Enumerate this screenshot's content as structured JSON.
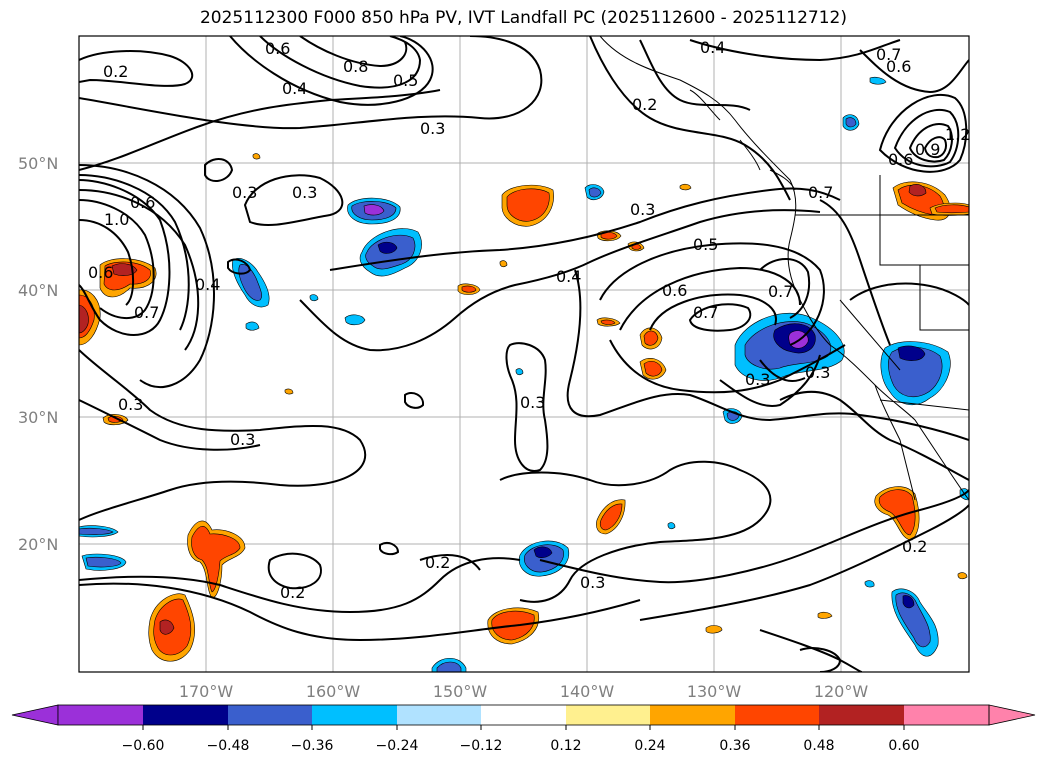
{
  "title": "2025112300 F000 850 hPa PV, IVT Landfall PC (2025112600 - 2025112712)",
  "map": {
    "lat_ticks": [
      "50°N",
      "40°N",
      "30°N",
      "20°N"
    ],
    "lon_ticks": [
      "170°W",
      "160°W",
      "150°W",
      "140°W",
      "130°W",
      "120°W"
    ],
    "grid": true,
    "extent_lon": [
      -180,
      -110
    ],
    "extent_lat": [
      10,
      60
    ]
  },
  "contour_labels": [
    "0.2",
    "0.6",
    "0.8",
    "0.5",
    "0.4",
    "0.4",
    "0.3",
    "0.2",
    "0.7",
    "0.6",
    "1.2",
    "0.9",
    "0.6",
    "1.0",
    "0.6",
    "0.6",
    "0.7",
    "0.4",
    "0.3",
    "0.3",
    "0.3",
    "0.3",
    "0.4",
    "0.5",
    "0.6",
    "0.7",
    "0.7",
    "0.7",
    "0.3",
    "0.3",
    "0.3",
    "0.3",
    "0.2",
    "0.2",
    "0.2",
    "0.3"
  ],
  "colorbar": {
    "ticks": [
      "−0.60",
      "−0.48",
      "−0.36",
      "−0.24",
      "−0.12",
      "0.12",
      "0.24",
      "0.36",
      "0.48",
      "0.60"
    ],
    "colors": {
      "neg_extend": "#9b30d9",
      "neg_060": "#00008b",
      "neg_048": "#3a5fcd",
      "neg_036": "#00bfff",
      "neg_024": "#b0e2ff",
      "neutral": "#ffffff",
      "pos_012": "#fff08f",
      "pos_024": "#ffa500",
      "pos_036": "#ff4500",
      "pos_048": "#b22222",
      "pos_extend": "#ff82ab"
    }
  }
}
